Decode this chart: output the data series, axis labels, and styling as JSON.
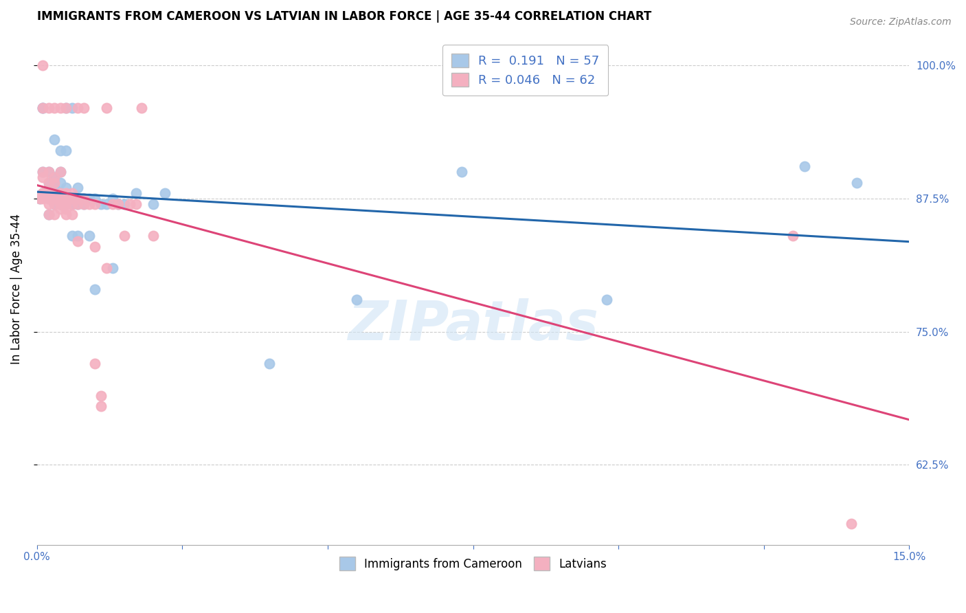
{
  "title": "IMMIGRANTS FROM CAMEROON VS LATVIAN IN LABOR FORCE | AGE 35-44 CORRELATION CHART",
  "source": "Source: ZipAtlas.com",
  "ylabel": "In Labor Force | Age 35-44",
  "xlim": [
    0.0,
    0.15
  ],
  "ylim": [
    0.55,
    1.03
  ],
  "yticks": [
    0.625,
    0.75,
    0.875,
    1.0
  ],
  "ytick_labels": [
    "62.5%",
    "75.0%",
    "87.5%",
    "100.0%"
  ],
  "xticks": [
    0.0,
    0.025,
    0.05,
    0.075,
    0.1,
    0.125,
    0.15
  ],
  "xtick_labels": [
    "0.0%",
    "",
    "",
    "",
    "",
    "",
    "15.0%"
  ],
  "watermark": "ZIPatlas",
  "series": [
    {
      "name": "Immigrants from Cameroon",
      "R": 0.191,
      "N": 57,
      "color": "#a8c8e8",
      "line_color": "#2266aa",
      "x": [
        0.0005,
        0.001,
        0.001,
        0.001,
        0.001,
        0.001,
        0.002,
        0.002,
        0.002,
        0.002,
        0.002,
        0.002,
        0.003,
        0.003,
        0.003,
        0.003,
        0.003,
        0.003,
        0.004,
        0.004,
        0.004,
        0.004,
        0.004,
        0.004,
        0.005,
        0.005,
        0.005,
        0.005,
        0.005,
        0.006,
        0.006,
        0.006,
        0.006,
        0.007,
        0.007,
        0.007,
        0.008,
        0.008,
        0.009,
        0.009,
        0.01,
        0.01,
        0.011,
        0.012,
        0.013,
        0.013,
        0.014,
        0.015,
        0.017,
        0.02,
        0.022,
        0.04,
        0.055,
        0.073,
        0.098,
        0.132,
        0.141
      ],
      "y": [
        0.875,
        0.88,
        0.88,
        0.9,
        0.96,
        0.96,
        0.86,
        0.875,
        0.88,
        0.885,
        0.89,
        0.9,
        0.87,
        0.875,
        0.88,
        0.885,
        0.895,
        0.93,
        0.87,
        0.875,
        0.88,
        0.89,
        0.9,
        0.92,
        0.87,
        0.875,
        0.885,
        0.92,
        0.96,
        0.84,
        0.87,
        0.875,
        0.96,
        0.84,
        0.87,
        0.885,
        0.87,
        0.875,
        0.84,
        0.875,
        0.79,
        0.875,
        0.87,
        0.87,
        0.81,
        0.875,
        0.87,
        0.87,
        0.88,
        0.87,
        0.88,
        0.72,
        0.78,
        0.9,
        0.78,
        0.905,
        0.89
      ]
    },
    {
      "name": "Latvians",
      "R": 0.046,
      "N": 62,
      "color": "#f4b0c0",
      "line_color": "#dd4477",
      "x": [
        0.0005,
        0.001,
        0.001,
        0.001,
        0.001,
        0.001,
        0.001,
        0.001,
        0.002,
        0.002,
        0.002,
        0.002,
        0.002,
        0.002,
        0.002,
        0.003,
        0.003,
        0.003,
        0.003,
        0.003,
        0.003,
        0.003,
        0.004,
        0.004,
        0.004,
        0.004,
        0.004,
        0.004,
        0.005,
        0.005,
        0.005,
        0.005,
        0.005,
        0.005,
        0.006,
        0.006,
        0.006,
        0.006,
        0.007,
        0.007,
        0.007,
        0.007,
        0.008,
        0.008,
        0.008,
        0.009,
        0.01,
        0.01,
        0.01,
        0.011,
        0.011,
        0.012,
        0.012,
        0.013,
        0.014,
        0.015,
        0.016,
        0.017,
        0.018,
        0.02,
        0.13,
        0.14
      ],
      "y": [
        0.875,
        0.875,
        0.88,
        0.88,
        0.895,
        0.9,
        0.96,
        1.0,
        0.86,
        0.87,
        0.875,
        0.88,
        0.89,
        0.9,
        0.96,
        0.86,
        0.87,
        0.875,
        0.88,
        0.89,
        0.895,
        0.96,
        0.865,
        0.87,
        0.875,
        0.88,
        0.9,
        0.96,
        0.86,
        0.865,
        0.87,
        0.875,
        0.88,
        0.96,
        0.86,
        0.87,
        0.875,
        0.88,
        0.835,
        0.87,
        0.875,
        0.96,
        0.87,
        0.875,
        0.96,
        0.87,
        0.72,
        0.83,
        0.87,
        0.68,
        0.69,
        0.81,
        0.96,
        0.87,
        0.87,
        0.84,
        0.87,
        0.87,
        0.96,
        0.84,
        0.84,
        0.57
      ]
    }
  ],
  "legend_entries": [
    {
      "label": "R =  0.191   N = 57",
      "color": "#a8c8e8"
    },
    {
      "label": "R = 0.046   N = 62",
      "color": "#f4b0c0"
    }
  ],
  "title_fontsize": 12,
  "axis_color": "#4472c4",
  "grid_color": "#cccccc"
}
